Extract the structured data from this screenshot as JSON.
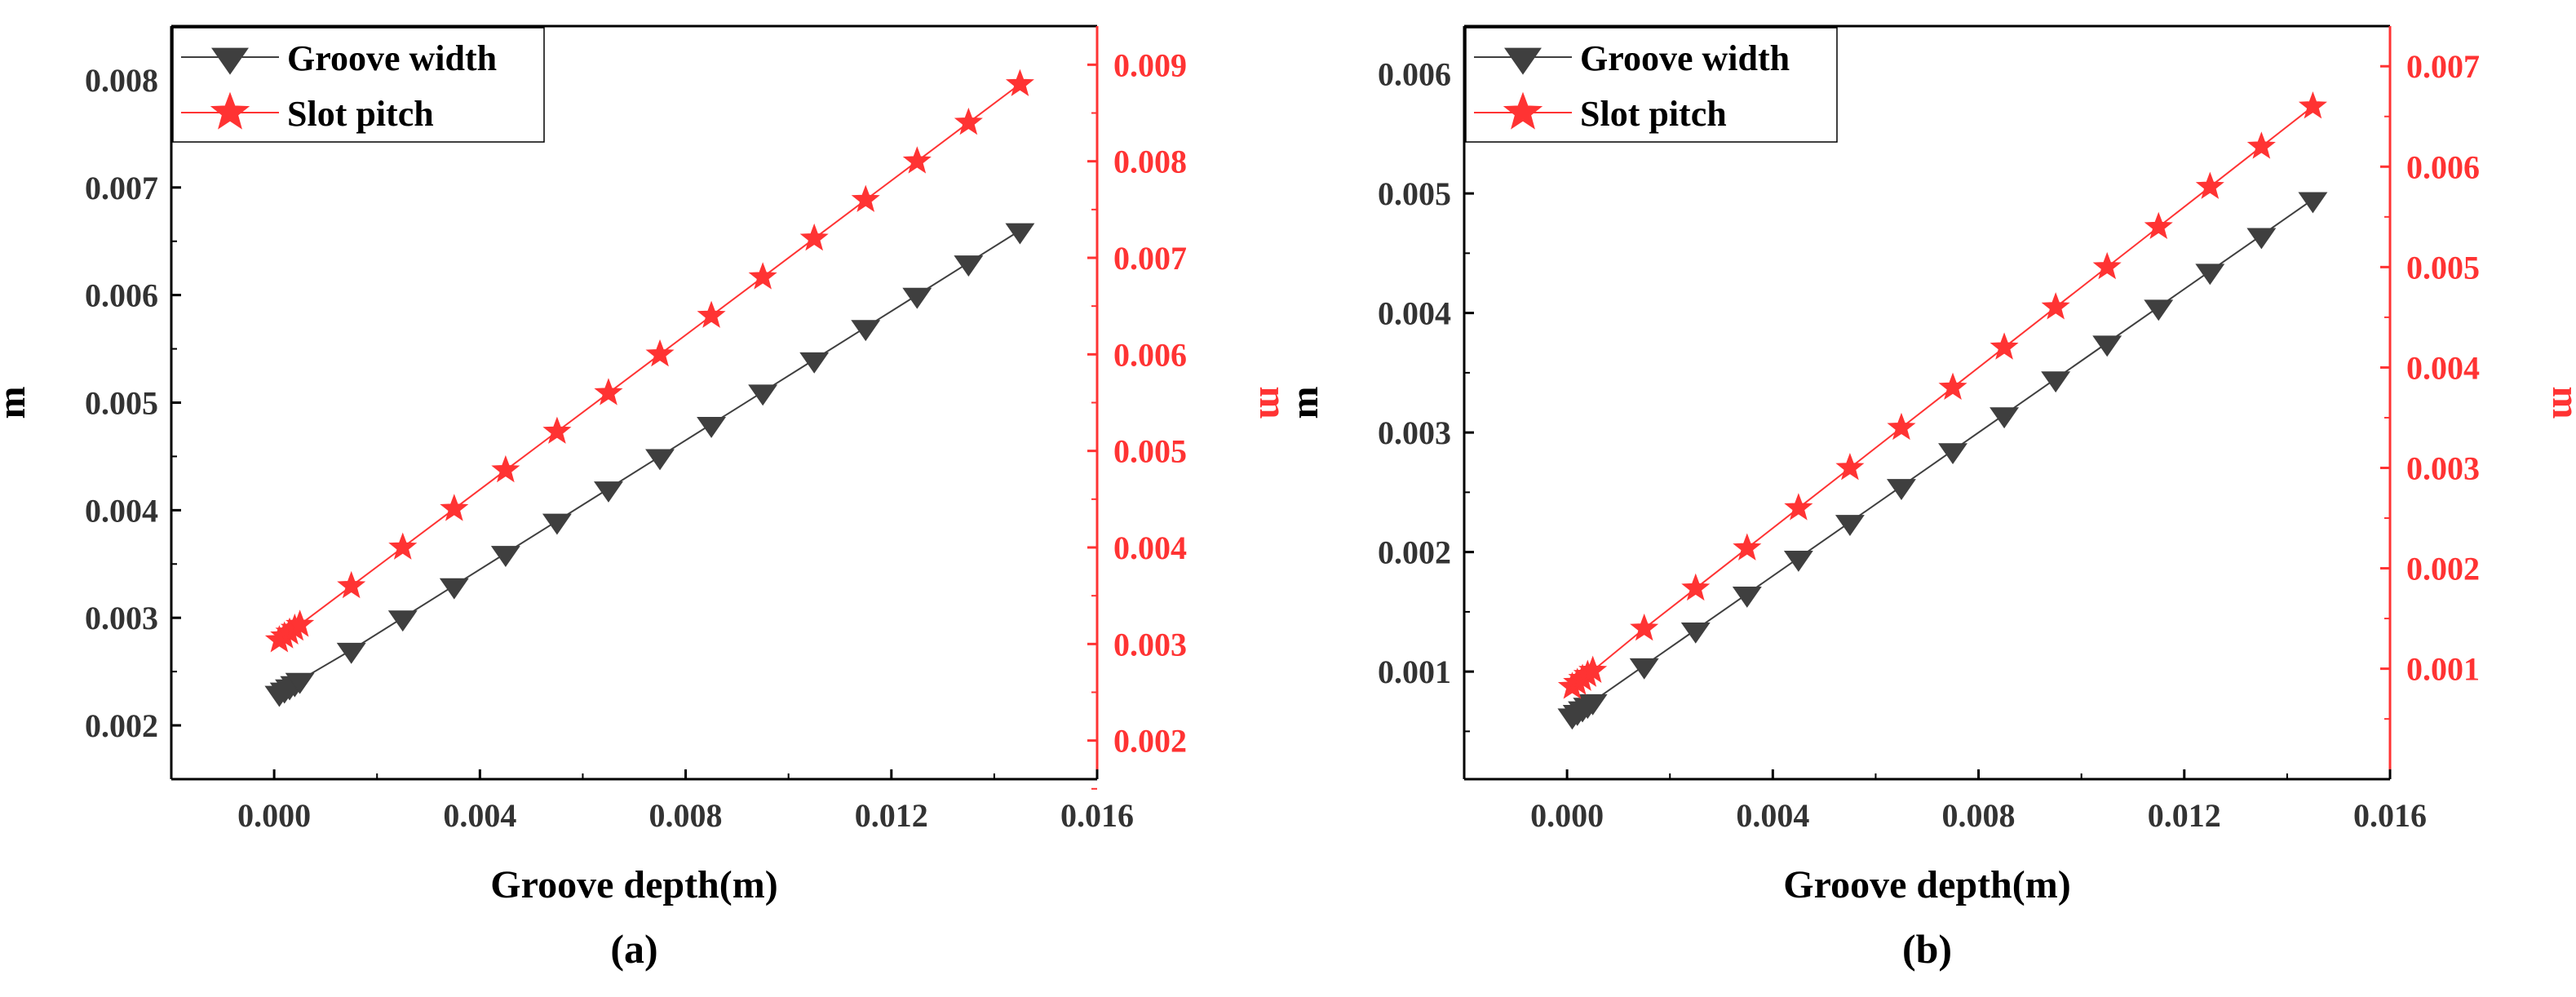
{
  "chart_data": [
    {
      "type": "line",
      "caption": "(a)",
      "xlabel": "Groove depth(m)",
      "ylabel_left": "m",
      "ylabel_right": "m",
      "xlim": [
        -0.002,
        0.016
      ],
      "ylim_left": [
        0.0015,
        0.0085
      ],
      "ylim_right": [
        0.0016,
        0.0094
      ],
      "xticks": [
        0.0,
        0.004,
        0.008,
        0.012,
        0.016
      ],
      "xtick_labels": [
        "0.000",
        "0.004",
        "0.008",
        "0.012",
        "0.016"
      ],
      "yticks_left": [
        0.002,
        0.003,
        0.004,
        0.005,
        0.006,
        0.007,
        0.008
      ],
      "ytick_labels_left": [
        "0.002",
        "0.003",
        "0.004",
        "0.005",
        "0.006",
        "0.007",
        "0.008"
      ],
      "yticks_right": [
        0.002,
        0.003,
        0.004,
        0.005,
        0.006,
        0.007,
        0.008,
        0.009
      ],
      "ytick_labels_right": [
        "0.002",
        "0.003",
        "0.004",
        "0.005",
        "0.006",
        "0.007",
        "0.008",
        "0.009"
      ],
      "legend_position": "top-left",
      "series": [
        {
          "name": "Groove width",
          "axis": "left",
          "color": "#3f3f3f",
          "marker": "triangle-down",
          "x": [
            0.0001,
            0.0002,
            0.0003,
            0.0004,
            0.0005,
            0.0015,
            0.0025,
            0.0035,
            0.0045,
            0.0055,
            0.0065,
            0.0075,
            0.0085,
            0.0095,
            0.0105,
            0.0115,
            0.0125,
            0.0135,
            0.0145
          ],
          "y": [
            0.0023,
            0.00233,
            0.00236,
            0.00239,
            0.00242,
            0.0027,
            0.003,
            0.0033,
            0.0036,
            0.0039,
            0.0042,
            0.0045,
            0.0048,
            0.0051,
            0.0054,
            0.0057,
            0.006,
            0.0063,
            0.0066
          ]
        },
        {
          "name": "Slot pitch",
          "axis": "right",
          "color": "#ff3333",
          "marker": "star",
          "x": [
            0.0001,
            0.0002,
            0.0003,
            0.0004,
            0.0005,
            0.0015,
            0.0025,
            0.0035,
            0.0045,
            0.0055,
            0.0065,
            0.0075,
            0.0085,
            0.0095,
            0.0105,
            0.0115,
            0.0125,
            0.0135,
            0.0145
          ],
          "y": [
            0.00304,
            0.00308,
            0.00312,
            0.00316,
            0.0032,
            0.0036,
            0.004,
            0.0044,
            0.0048,
            0.0052,
            0.0056,
            0.006,
            0.0064,
            0.0068,
            0.0072,
            0.0076,
            0.008,
            0.0084,
            0.0088
          ]
        }
      ]
    },
    {
      "type": "line",
      "caption": "(b)",
      "xlabel": "Groove depth(m)",
      "ylabel_left": "m",
      "ylabel_right": "m",
      "xlim": [
        -0.002,
        0.016
      ],
      "ylim_left": [
        0.0001,
        0.0064
      ],
      "ylim_right": [
        -0.0001,
        0.0074
      ],
      "xticks": [
        0.0,
        0.004,
        0.008,
        0.012,
        0.016
      ],
      "xtick_labels": [
        "0.000",
        "0.004",
        "0.008",
        "0.012",
        "0.016"
      ],
      "yticks_left": [
        0.001,
        0.002,
        0.003,
        0.004,
        0.005,
        0.006
      ],
      "ytick_labels_left": [
        "0.001",
        "0.002",
        "0.003",
        "0.004",
        "0.005",
        "0.006"
      ],
      "yticks_right": [
        0.001,
        0.002,
        0.003,
        0.004,
        0.005,
        0.006,
        0.007
      ],
      "ytick_labels_right": [
        "0.001",
        "0.002",
        "0.003",
        "0.004",
        "0.005",
        "0.006",
        "0.007"
      ],
      "legend_position": "top-left",
      "series": [
        {
          "name": "Groove width",
          "axis": "left",
          "color": "#3f3f3f",
          "marker": "triangle-down",
          "x": [
            0.0001,
            0.0002,
            0.0003,
            0.0004,
            0.0005,
            0.0015,
            0.0025,
            0.0035,
            0.0045,
            0.0055,
            0.0065,
            0.0075,
            0.0085,
            0.0095,
            0.0105,
            0.0115,
            0.0125,
            0.0135,
            0.0145
          ],
          "y": [
            0.00063,
            0.00066,
            0.00069,
            0.00072,
            0.00075,
            0.00105,
            0.00135,
            0.00165,
            0.00195,
            0.00225,
            0.00255,
            0.00285,
            0.00315,
            0.00345,
            0.00375,
            0.00405,
            0.00435,
            0.00465,
            0.00495
          ]
        },
        {
          "name": "Slot pitch",
          "axis": "right",
          "color": "#ff3333",
          "marker": "star",
          "x": [
            0.0001,
            0.0002,
            0.0003,
            0.0004,
            0.0005,
            0.0015,
            0.0025,
            0.0035,
            0.0045,
            0.0055,
            0.0065,
            0.0075,
            0.0085,
            0.0095,
            0.0105,
            0.0115,
            0.0125,
            0.0135,
            0.0145
          ],
          "y": [
            0.00082,
            0.00086,
            0.0009,
            0.00094,
            0.00098,
            0.0014,
            0.0018,
            0.0022,
            0.0026,
            0.003,
            0.0034,
            0.0038,
            0.0042,
            0.0046,
            0.005,
            0.0054,
            0.0058,
            0.0062,
            0.0066
          ]
        }
      ]
    }
  ]
}
